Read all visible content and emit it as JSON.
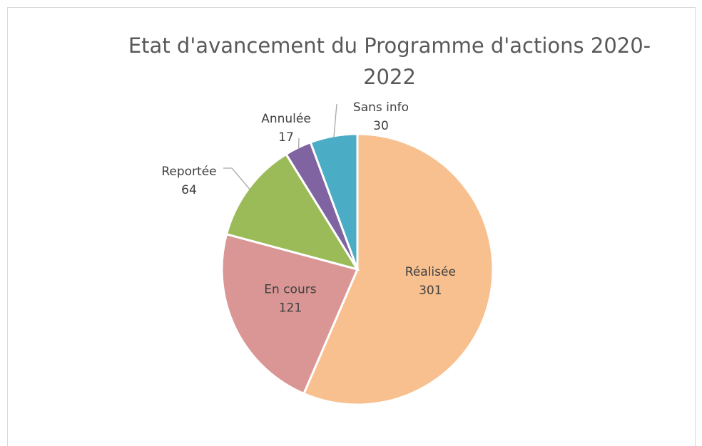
{
  "chart_data": {
    "type": "pie",
    "title": "Etat d'avancement du Programme d'actions 2020-2022",
    "categories": [
      "Réalisée",
      "En cours",
      "Reportée",
      "Annulée",
      "Sans info"
    ],
    "values": [
      301,
      121,
      64,
      17,
      30
    ],
    "colors": [
      "#F8C08F",
      "#D99694",
      "#9BBB59",
      "#8064A2",
      "#4BACC6"
    ]
  }
}
